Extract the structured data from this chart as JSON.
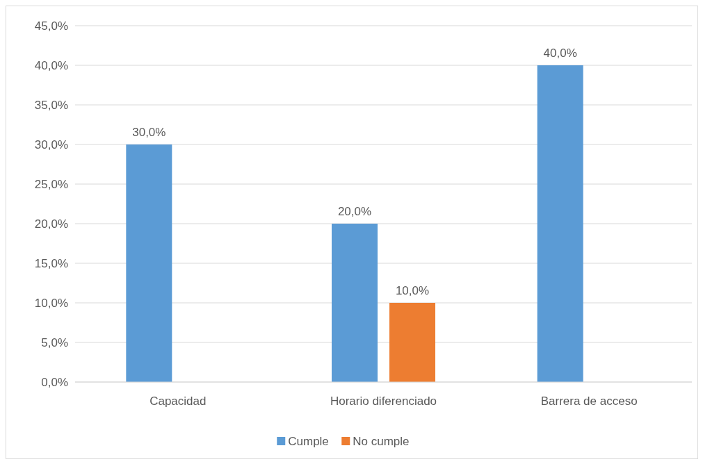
{
  "chart_data": {
    "type": "bar",
    "categories": [
      "Capacidad",
      "Horario diferenciado",
      "Barrera de acceso"
    ],
    "series": [
      {
        "name": "Cumple",
        "color": "#5b9bd5",
        "values": [
          30,
          20,
          40
        ],
        "value_labels": [
          "30,0%",
          "20,0%",
          "40,0%"
        ]
      },
      {
        "name": "No cumple",
        "color": "#ed7d31",
        "values": [
          null,
          10,
          null
        ],
        "value_labels": [
          null,
          "10,0%",
          null
        ]
      }
    ],
    "ylim": [
      0,
      45
    ],
    "yticks": [
      {
        "value": 0,
        "label": "0,0%"
      },
      {
        "value": 5,
        "label": "5,0%"
      },
      {
        "value": 10,
        "label": "10,0%"
      },
      {
        "value": 15,
        "label": "15,0%"
      },
      {
        "value": 20,
        "label": "20,0%"
      },
      {
        "value": 25,
        "label": "25,0%"
      },
      {
        "value": 30,
        "label": "30,0%"
      },
      {
        "value": 35,
        "label": "35,0%"
      },
      {
        "value": 40,
        "label": "40,0%"
      },
      {
        "value": 45,
        "label": "45,0%"
      }
    ],
    "grid": "y",
    "legend": "bottom"
  }
}
